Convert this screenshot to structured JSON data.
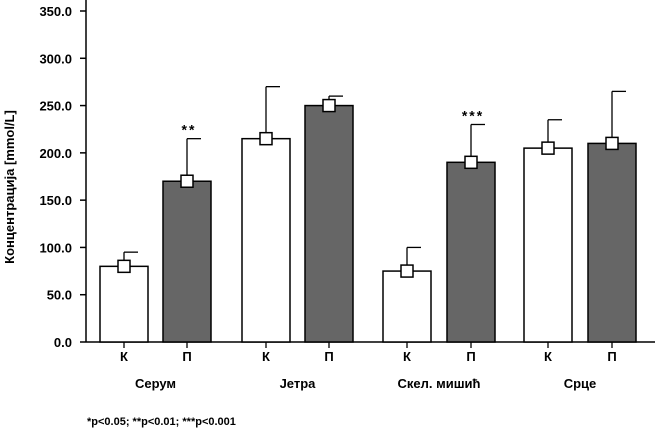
{
  "chart_data": {
    "type": "bar",
    "ylabel": "Концентрација [mmol/L]",
    "ylim": [
      0,
      350
    ],
    "yticks": [
      "0.0",
      "50.0",
      "100.0",
      "150.0",
      "200.0",
      "250.0",
      "300.0",
      "350.0"
    ],
    "groups": [
      "Серум",
      "Јетра",
      "Скел. мишић",
      "Срце"
    ],
    "series": [
      {
        "name": "К",
        "values": [
          80,
          215,
          75,
          205
        ],
        "errors": [
          95,
          270,
          100,
          235
        ],
        "color": "#ffffff"
      },
      {
        "name": "П",
        "values": [
          170,
          250,
          190,
          210
        ],
        "errors": [
          215,
          260,
          230,
          265
        ],
        "color": "#666666"
      }
    ],
    "significance": [
      "**",
      "",
      "***",
      ""
    ],
    "footnote": "*p<0.05; **p<0.01; ***p<0.001"
  }
}
